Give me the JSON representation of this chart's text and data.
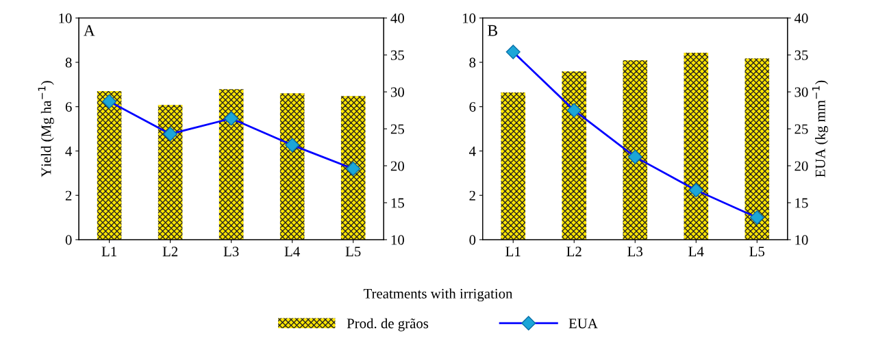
{
  "chart_data": [
    {
      "type": "bar",
      "categories": [
        "L1",
        "L2",
        "L3",
        "L4",
        "L5"
      ],
      "ylabel": "Yield (Mg ha$^{−1}$)",
      "xlabel": "Treatments with irrigation",
      "annotations": [
        "A"
      ],
      "ylim": [
        0,
        10
      ],
      "yticks": [
        0,
        2,
        4,
        6,
        8,
        10
      ],
      "y2lim": [
        10,
        40
      ],
      "y2ticks": [
        10,
        15,
        20,
        25,
        30,
        35,
        40
      ],
      "legend": "bottom",
      "grid": false,
      "series": [
        {
          "name": "Prod. de grãos",
          "color": "#ffe600",
          "values": [
            6.7,
            6.08,
            6.79,
            6.6,
            6.48
          ]
        },
        {
          "name": "EUA",
          "type": "line",
          "axis": "y2",
          "color": "#0000ff",
          "marker": "diamond",
          "values": [
            28.7,
            24.3,
            26.4,
            22.8,
            19.6
          ]
        }
      ]
    },
    {
      "type": "bar",
      "categories": [
        "L1",
        "L2",
        "L3",
        "L4",
        "L5"
      ],
      "y2label": "EUA (kg mm$^{−1}$)",
      "annotations": [
        "B"
      ],
      "ylim": [
        0,
        10
      ],
      "yticks": [
        0,
        2,
        4,
        6,
        8,
        10
      ],
      "y2lim": [
        10,
        40
      ],
      "y2ticks": [
        10,
        15,
        20,
        25,
        30,
        35,
        40
      ],
      "grid": false,
      "series": [
        {
          "color": "#ffe600",
          "values": [
            6.64,
            7.59,
            8.09,
            8.43,
            8.18
          ]
        },
        {
          "type": "line",
          "axis": "y2",
          "color": "#0000ff",
          "marker": "diamond",
          "values": [
            35.4,
            27.5,
            21.2,
            16.7,
            13.0
          ]
        }
      ]
    }
  ]
}
